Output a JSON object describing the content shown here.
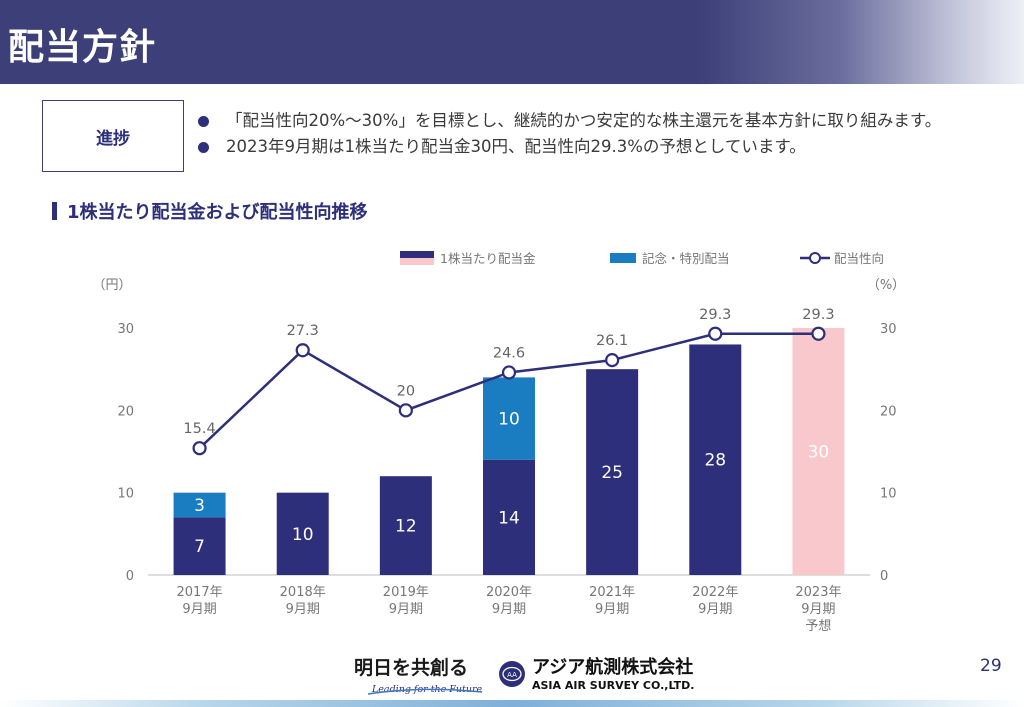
{
  "header": {
    "title": "配当方針"
  },
  "status": {
    "label": "進捗",
    "bullets": [
      "「配当性向20%～30%」を目標とし、継続的かつ安定的な株主還元を基本方針に取り組みます。",
      "2023年9月期は1株当たり配当金30円、配当性向29.3%の予想としています。"
    ]
  },
  "section": {
    "title": "1株当たり配当金および配当性向推移"
  },
  "footer": {
    "slogan": "明日を共創る",
    "slogan_sub": "Leading for the Future",
    "company_jp": "アジア航測株式会社",
    "company_en": "ASIA AIR SURVEY CO.,LTD.",
    "page_number": "29"
  },
  "chart_data": {
    "type": "bar",
    "categories": [
      [
        "2017年",
        "9月期"
      ],
      [
        "2018年",
        "9月期"
      ],
      [
        "2019年",
        "9月期"
      ],
      [
        "2020年",
        "9月期"
      ],
      [
        "2021年",
        "9月期"
      ],
      [
        "2022年",
        "9月期"
      ],
      [
        "2023年",
        "9月期",
        "予想"
      ]
    ],
    "series": [
      {
        "name": "1株当たり配当金",
        "kind": "bar",
        "stack": "a",
        "values": [
          7,
          10,
          12,
          14,
          25,
          28,
          30
        ],
        "colors": [
          "#2d2f7a",
          "#2d2f7a",
          "#2d2f7a",
          "#2d2f7a",
          "#2d2f7a",
          "#2d2f7a",
          "#f9c8cc"
        ]
      },
      {
        "name": "記念・特別配当",
        "kind": "bar",
        "stack": "a",
        "values": [
          3,
          0,
          0,
          10,
          0,
          0,
          0
        ],
        "color": "#1a7cc1"
      },
      {
        "name": "配当性向",
        "kind": "line",
        "axis": "right",
        "values": [
          15.4,
          27.3,
          20,
          24.6,
          26.1,
          29.3,
          29.3
        ],
        "color": "#2d2f7a"
      }
    ],
    "y_left": {
      "unit": "（円）",
      "ticks": [
        0,
        10,
        20,
        30
      ],
      "lim": [
        0,
        30
      ]
    },
    "y_right": {
      "unit": "（%）",
      "ticks": [
        0,
        10,
        20,
        30
      ],
      "lim": [
        0,
        30
      ]
    },
    "legend_position": "top-right",
    "legend": [
      {
        "label": "1株当たり配当金",
        "symbol": "bar-split",
        "colors": [
          "#2d2f7a",
          "#f9c8cc"
        ]
      },
      {
        "label": "記念・特別配当",
        "symbol": "bar",
        "color": "#1a7cc1"
      },
      {
        "label": "配当性向",
        "symbol": "line-marker",
        "color": "#2d2f7a"
      }
    ]
  }
}
